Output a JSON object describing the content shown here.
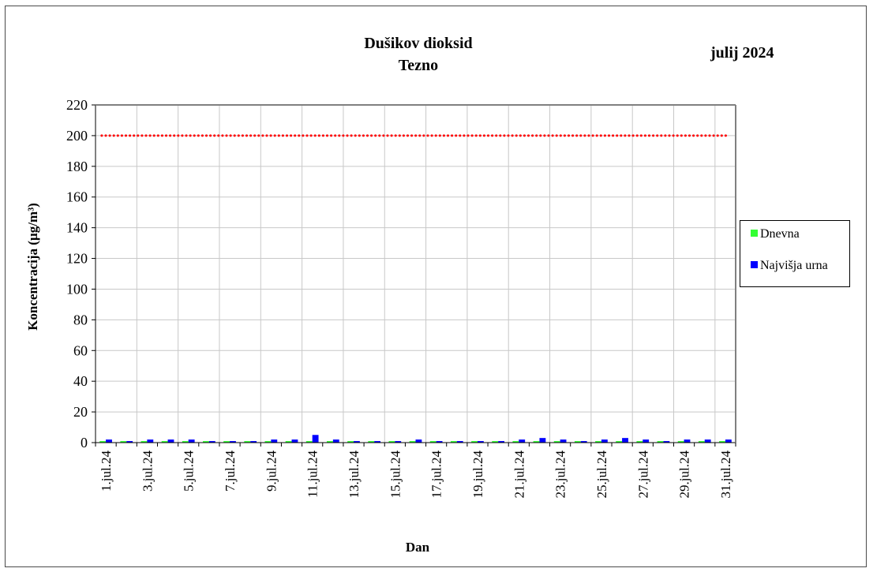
{
  "header": {
    "title_line1": "Dušikov dioksid",
    "title_line2": "Tezno",
    "period": "julij 2024"
  },
  "colors": {
    "daily": "#33ff33",
    "max_hourly": "#0000ff",
    "limit": "#ff0000",
    "grid": "#c8c8c8",
    "plot_border": "#808080"
  },
  "chart_data": {
    "type": "bar",
    "title": "Dušikov dioksid Tezno",
    "xlabel": "Dan",
    "ylabel": "Koncentracija  (µg/m³)",
    "ylim": [
      0,
      220
    ],
    "yticks": [
      0,
      20,
      40,
      60,
      80,
      100,
      120,
      140,
      160,
      180,
      200,
      220
    ],
    "grid": true,
    "legend_position": "right",
    "categories": [
      "1.jul.24",
      "2.jul.24",
      "3.jul.24",
      "4.jul.24",
      "5.jul.24",
      "6.jul.24",
      "7.jul.24",
      "8.jul.24",
      "9.jul.24",
      "10.jul.24",
      "11.jul.24",
      "12.jul.24",
      "13.jul.24",
      "14.jul.24",
      "15.jul.24",
      "16.jul.24",
      "17.jul.24",
      "18.jul.24",
      "19.jul.24",
      "20.jul.24",
      "21.jul.24",
      "22.jul.24",
      "23.jul.24",
      "24.jul.24",
      "25.jul.24",
      "26.jul.24",
      "27.jul.24",
      "28.jul.24",
      "29.jul.24",
      "30.jul.24",
      "31.jul.24"
    ],
    "tick_labels": [
      "1.jul.24",
      "3.jul.24",
      "5.jul.24",
      "7.jul.24",
      "9.jul.24",
      "11.jul.24",
      "13.jul.24",
      "15.jul.24",
      "17.jul.24",
      "19.jul.24",
      "21.jul.24",
      "23.jul.24",
      "25.jul.24",
      "27.jul.24",
      "29.jul.24",
      "31.jul.24"
    ],
    "series": [
      {
        "name": "Dnevna",
        "values": [
          1,
          1,
          1,
          1,
          1,
          1,
          1,
          1,
          1,
          1,
          1,
          1,
          1,
          1,
          1,
          1,
          1,
          1,
          1,
          1,
          1,
          1,
          1,
          1,
          1,
          1,
          1,
          1,
          1,
          1,
          1
        ]
      },
      {
        "name": "Najvišja urna",
        "values": [
          2,
          1,
          2,
          2,
          2,
          1,
          1,
          1,
          2,
          2,
          5,
          2,
          1,
          1,
          1,
          2,
          1,
          1,
          1,
          1,
          2,
          3,
          2,
          1,
          2,
          3,
          2,
          1,
          2,
          2,
          2
        ]
      }
    ],
    "limit_line": {
      "value": 200,
      "style": "dotted"
    }
  }
}
